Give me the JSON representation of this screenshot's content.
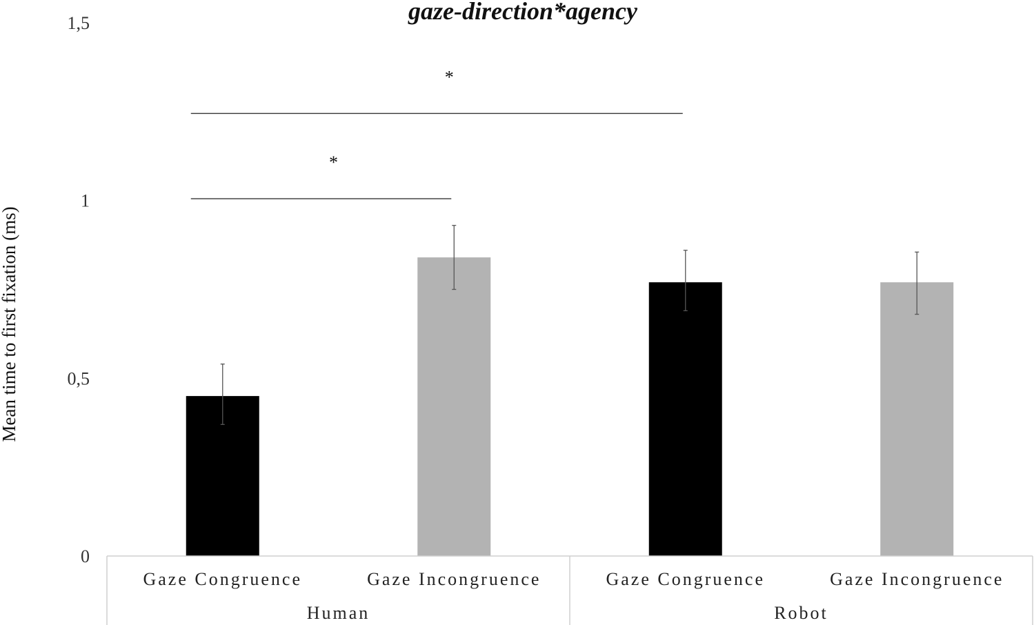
{
  "chart_data": {
    "type": "bar",
    "title": "gaze-direction*agency",
    "ylabel": "Mean time to first fixation (ms)",
    "xlabel": "",
    "ylim": [
      0,
      1.5
    ],
    "yticks": [
      0,
      0.5,
      1,
      1.5
    ],
    "ytick_labels": [
      "0",
      "0,5",
      "1",
      "1,5"
    ],
    "grid": false,
    "groups": [
      "Human",
      "Robot"
    ],
    "categories": [
      "Gaze Congruence",
      "Gaze Incongruence",
      "Gaze Congruence",
      "Gaze Incongruence"
    ],
    "bars": [
      {
        "group": "Human",
        "label": "Gaze Congruence",
        "value": 0.45,
        "err_low": 0.37,
        "err_high": 0.54,
        "color": "#000000"
      },
      {
        "group": "Human",
        "label": "Gaze Incongruence",
        "value": 0.84,
        "err_low": 0.75,
        "err_high": 0.93,
        "color": "#b3b3b3"
      },
      {
        "group": "Robot",
        "label": "Gaze Congruence",
        "value": 0.77,
        "err_low": 0.69,
        "err_high": 0.86,
        "color": "#000000"
      },
      {
        "group": "Robot",
        "label": "Gaze Incongruence",
        "value": 0.77,
        "err_low": 0.68,
        "err_high": 0.855,
        "color": "#b3b3b3"
      }
    ],
    "significance": [
      {
        "from_bar": 0,
        "to_bar": 1,
        "label": "*",
        "y": 1.005
      },
      {
        "from_bar": 0,
        "to_bar": 2,
        "label": "*",
        "y": 1.245
      }
    ]
  }
}
